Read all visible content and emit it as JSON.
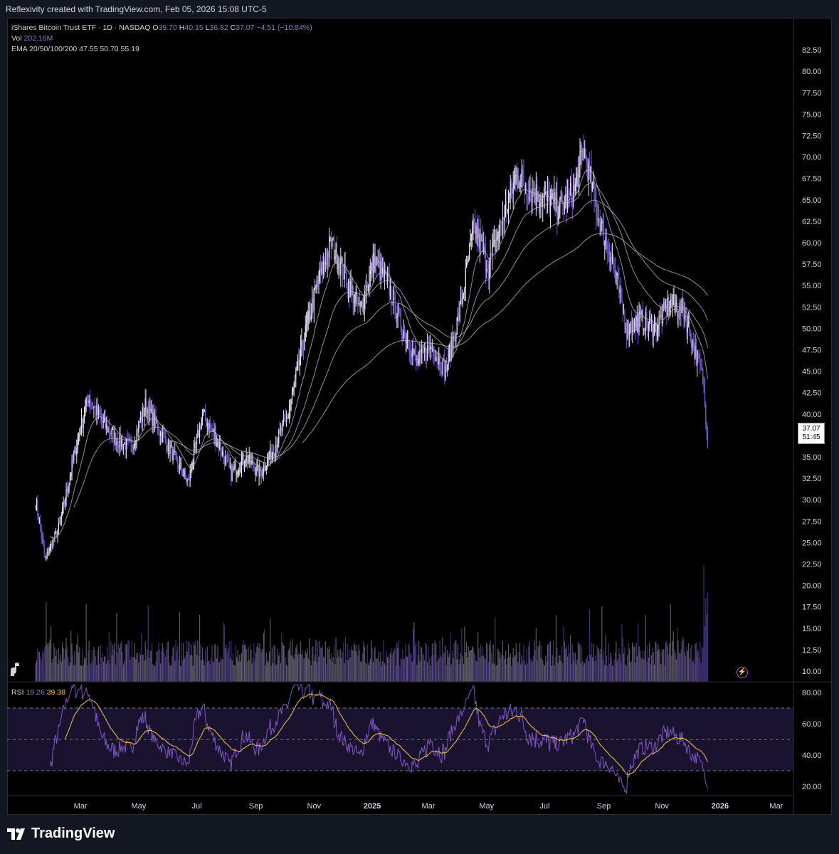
{
  "header": {
    "text": "Reflexivity created with TradingView.com, Feb 05, 2026 15:08 UTC-5"
  },
  "legend": {
    "symbol": "iShares Bitcoin Trust ETF · 1D · NASDAQ",
    "o_label": "O",
    "o": "39.70",
    "h_label": "H",
    "h": "40.15",
    "l_label": "L",
    "l": "36.82",
    "c_label": "C",
    "c": "37.07",
    "change": "−4.51 (−10.84%)",
    "vol_label": "Vol",
    "vol": "202.16M",
    "ema_label": "EMA 20/50/100/200",
    "ema20": "47.55",
    "ema50": "50.70",
    "ema100": "55.19"
  },
  "rsi_legend": {
    "label": "RSI",
    "rsi": "19.26",
    "ma": "39.38"
  },
  "price_box": {
    "price": "37.07",
    "countdown": "51:45"
  },
  "brand": {
    "name": "TradingView"
  },
  "colors": {
    "up": "#e8e6f5",
    "down": "#7b5cd6",
    "rsi": "#7e57c2",
    "rsi_ma": "#f5c542",
    "ema": "#b2b5be"
  },
  "chart_data": {
    "type": "candlestick",
    "y_ticks": [
      "82.50",
      "80.00",
      "77.50",
      "75.00",
      "72.50",
      "70.00",
      "67.50",
      "65.00",
      "62.50",
      "60.00",
      "57.50",
      "55.00",
      "52.50",
      "50.00",
      "47.50",
      "45.00",
      "42.50",
      "40.00",
      "37.50",
      "35.00",
      "32.50",
      "30.00",
      "27.50",
      "25.00",
      "22.50",
      "20.00",
      "17.50",
      "15.00",
      "12.50",
      "10.00"
    ],
    "ylim": [
      8.75,
      85
    ],
    "x_ticks": [
      {
        "label": "Mar",
        "day": 47
      },
      {
        "label": "May",
        "day": 108
      },
      {
        "label": "Jul",
        "day": 169
      },
      {
        "label": "Sep",
        "day": 231
      },
      {
        "label": "Nov",
        "day": 292
      },
      {
        "label": "2025",
        "day": 353
      },
      {
        "label": "Mar",
        "day": 412
      },
      {
        "label": "May",
        "day": 473
      },
      {
        "label": "Jul",
        "day": 534
      },
      {
        "label": "Sep",
        "day": 596
      },
      {
        "label": "Nov",
        "day": 657
      },
      {
        "label": "2026",
        "day": 718
      },
      {
        "label": "Mar",
        "day": 777
      }
    ],
    "x_range_days": [
      -30,
      795
    ],
    "price_path": [
      [
        0,
        30
      ],
      [
        10,
        23
      ],
      [
        25,
        27
      ],
      [
        40,
        35
      ],
      [
        55,
        42
      ],
      [
        70,
        39
      ],
      [
        85,
        37
      ],
      [
        100,
        36
      ],
      [
        115,
        41
      ],
      [
        130,
        38
      ],
      [
        145,
        35
      ],
      [
        160,
        32
      ],
      [
        175,
        40
      ],
      [
        190,
        37
      ],
      [
        205,
        33
      ],
      [
        220,
        35
      ],
      [
        235,
        33
      ],
      [
        250,
        36
      ],
      [
        265,
        40
      ],
      [
        280,
        48
      ],
      [
        295,
        55
      ],
      [
        310,
        60
      ],
      [
        325,
        56
      ],
      [
        340,
        52
      ],
      [
        355,
        58
      ],
      [
        370,
        55
      ],
      [
        385,
        50
      ],
      [
        400,
        46
      ],
      [
        415,
        48
      ],
      [
        430,
        45
      ],
      [
        445,
        52
      ],
      [
        460,
        62
      ],
      [
        475,
        57
      ],
      [
        490,
        63
      ],
      [
        505,
        68
      ],
      [
        520,
        66
      ],
      [
        535,
        65
      ],
      [
        550,
        64
      ],
      [
        565,
        66
      ],
      [
        575,
        71
      ],
      [
        590,
        63
      ],
      [
        605,
        58
      ],
      [
        620,
        50
      ],
      [
        635,
        51
      ],
      [
        650,
        50
      ],
      [
        665,
        53
      ],
      [
        680,
        52
      ],
      [
        690,
        48
      ],
      [
        700,
        44
      ],
      [
        705,
        37
      ]
    ],
    "ema_paths": [
      {
        "name": "EMA 20",
        "start": 15
      },
      {
        "name": "EMA 50",
        "start": 40
      },
      {
        "name": "EMA 100",
        "start": 140
      },
      {
        "name": "EMA 200",
        "start": 280
      }
    ],
    "volume_axis_max": 30,
    "rsi_ticks": [
      "80.00",
      "60.00",
      "40.00",
      "20.00"
    ],
    "rsi_ylim": [
      15,
      85
    ],
    "rsi_bands": [
      70,
      50,
      30
    ]
  }
}
